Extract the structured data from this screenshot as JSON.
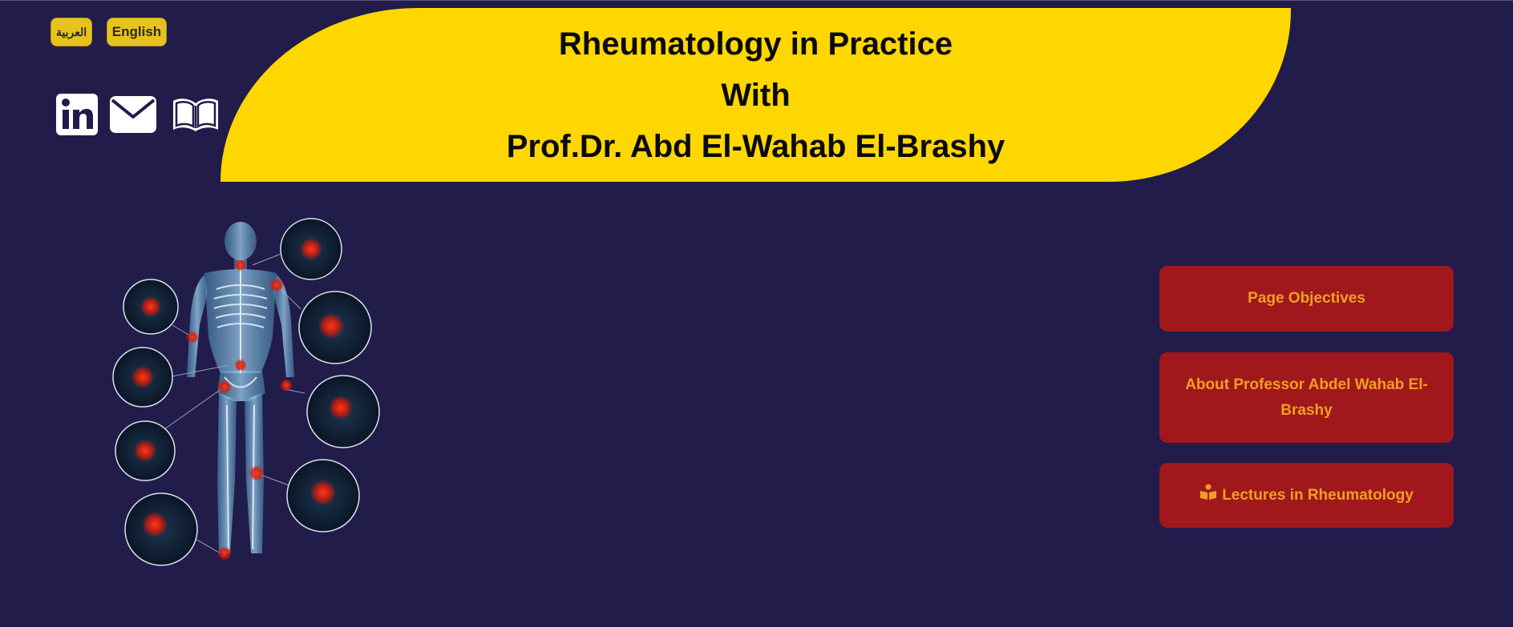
{
  "language_switcher": {
    "arabic_label": "العربية",
    "english_label": "English",
    "button_color": "#e8c21c"
  },
  "social_links": [
    {
      "name": "linkedin-icon"
    },
    {
      "name": "mail-icon"
    },
    {
      "name": "open-book-icon"
    }
  ],
  "banner": {
    "line1": "Rheumatology in Practice",
    "line2": "With",
    "line3": "Prof.Dr. Abd El-Wahab El-Brashy",
    "color": "#fed700"
  },
  "hero_image": {
    "name": "skeleton-joints-illustration"
  },
  "nav": {
    "objectives_label": "Page Objectives",
    "about_label": "About Professor Abdel Wahab El-Brashy",
    "lectures_label": "Lectures in Rheumatology",
    "lectures_icon": "reading-person-icon",
    "button_color": "#a0181b",
    "text_color": "#f0a020"
  },
  "page": {
    "background_color": "#221c4b"
  }
}
